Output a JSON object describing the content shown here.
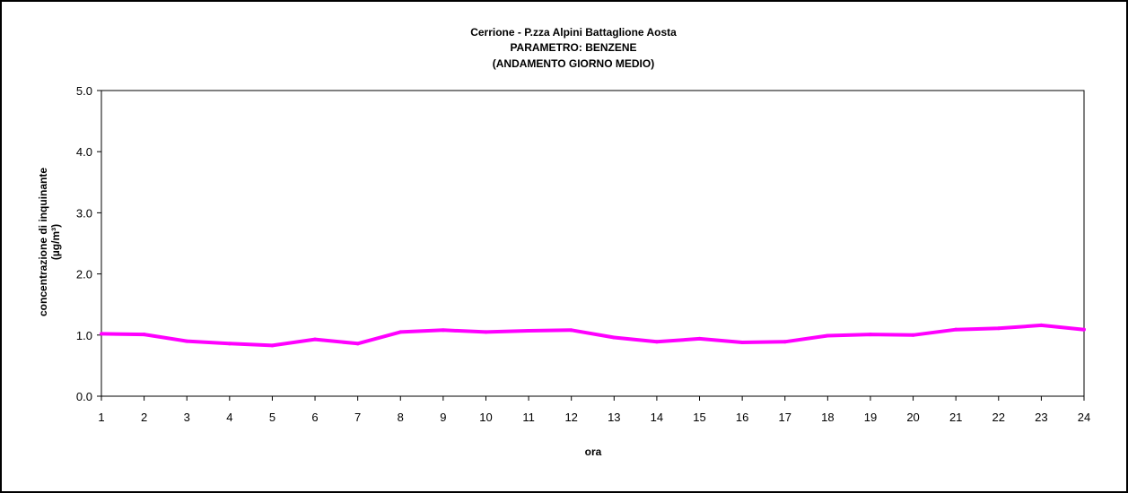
{
  "chart_data": {
    "type": "line",
    "title": [
      "Cerrione - P.zza Alpini Battaglione Aosta",
      "PARAMETRO: BENZENE",
      "(ANDAMENTO GIORNO MEDIO)"
    ],
    "xlabel": "ora",
    "ylabel": [
      "concentrazione di inquinante",
      "(µg/m³)"
    ],
    "categories": [
      "1",
      "2",
      "3",
      "4",
      "5",
      "6",
      "7",
      "8",
      "9",
      "10",
      "11",
      "12",
      "13",
      "14",
      "15",
      "16",
      "17",
      "18",
      "19",
      "20",
      "21",
      "22",
      "23",
      "24"
    ],
    "ylim": [
      0,
      5
    ],
    "yticks": [
      "0.0",
      "1.0",
      "2.0",
      "3.0",
      "4.0",
      "5.0"
    ],
    "grid": false,
    "series": [
      {
        "color": "#ff00ff",
        "values": [
          1.02,
          1.01,
          0.9,
          0.86,
          0.83,
          0.93,
          0.86,
          1.05,
          1.08,
          1.05,
          1.07,
          1.08,
          0.96,
          0.89,
          0.94,
          0.88,
          0.89,
          0.99,
          1.01,
          1.0,
          1.09,
          1.11,
          1.16,
          1.09
        ]
      }
    ]
  }
}
